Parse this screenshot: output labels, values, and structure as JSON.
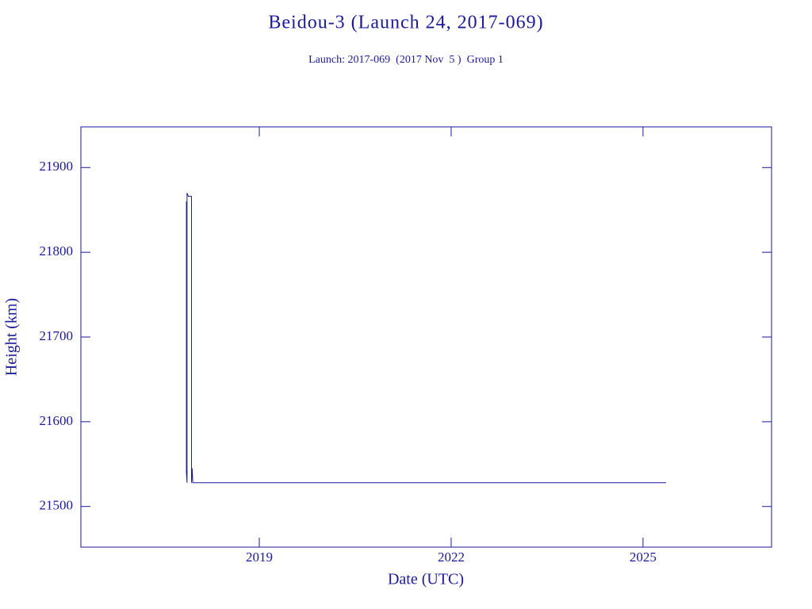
{
  "chart_data": {
    "type": "line",
    "title": "Beidou-3 (Launch 24, 2017-069)",
    "subtitle": "Launch: 2017-069  (2017 Nov  5 )  Group 1",
    "x_label": "Date (UTC)",
    "y_label": "Height (km)",
    "x": [
      2017.86,
      2017.86,
      2017.87,
      2017.87,
      2017.89,
      2017.94,
      2017.94,
      2017.95,
      2017.96,
      2025.36
    ],
    "series": [
      {
        "color": "#1a1a9a",
        "values": [
          21860,
          21540,
          21528,
          21870,
          21866,
          21866,
          21528,
          21545,
          21528,
          21528
        ]
      }
    ],
    "xlim": [
      2016.21,
      2027.01
    ],
    "xticks": [
      2019,
      2022,
      2025
    ],
    "ylim": [
      21452,
      21948
    ],
    "yticks": [
      21500,
      21600,
      21700,
      21800,
      21900
    ],
    "frame_color": "#1a1a9a"
  }
}
